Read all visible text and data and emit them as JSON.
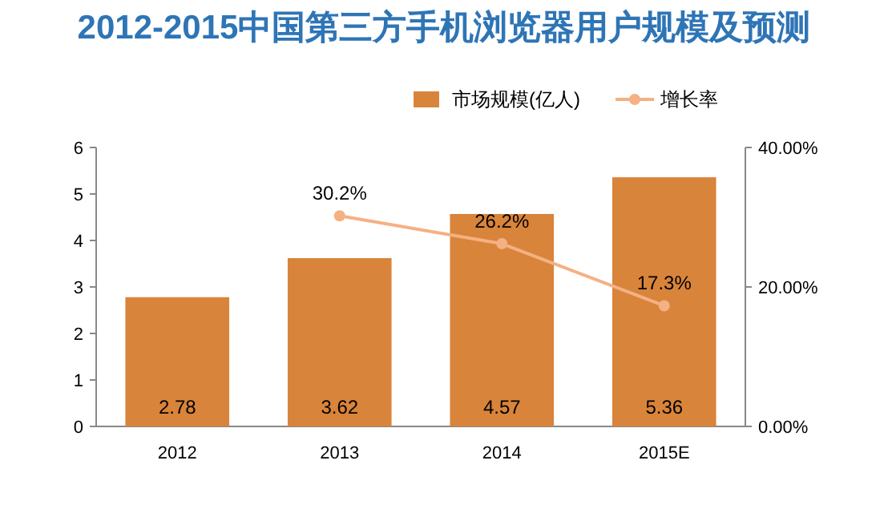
{
  "chart_data": {
    "type": "bar",
    "title": "2012-2015中国第三方手机浏览器用户规模及预测",
    "categories": [
      "2012",
      "2013",
      "2014",
      "2015E"
    ],
    "series": [
      {
        "name": "市场规模(亿人)",
        "color": "#d9843b",
        "values": [
          2.78,
          3.62,
          4.57,
          5.36
        ],
        "value_labels": [
          "2.78",
          "3.62",
          "4.57",
          "5.36"
        ]
      },
      {
        "name": "增长率",
        "type": "line",
        "axis": "y2",
        "color": "#f4b183",
        "marker": "circle",
        "values": [
          null,
          30.2,
          26.2,
          17.3
        ],
        "value_labels": [
          null,
          "30.2%",
          "26.2%",
          "17.3%"
        ]
      }
    ],
    "ylim": [
      0,
      6
    ],
    "yticks": [
      0,
      1,
      2,
      3,
      4,
      5,
      6
    ],
    "y2lim": [
      0,
      40
    ],
    "y2ticks": [
      {
        "value": 0,
        "label": "0.00%"
      },
      {
        "value": 20,
        "label": "20.00%"
      },
      {
        "value": 40,
        "label": "40.00%"
      }
    ],
    "legend": "top right",
    "grid": false
  }
}
